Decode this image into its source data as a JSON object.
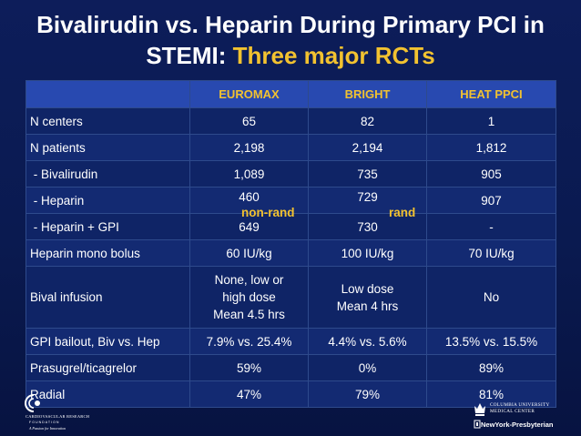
{
  "slide": {
    "title_line1": "Bivalirudin vs. Heparin During Primary PCI in",
    "title_line2_prefix": "STEMI: ",
    "title_line2_highlight": "Three major RCTs"
  },
  "table": {
    "headers": [
      "",
      "EUROMAX",
      "BRIGHT",
      "HEAT PPCI"
    ],
    "rows": [
      {
        "label": "N centers",
        "values": [
          "65",
          "82",
          "1"
        ]
      },
      {
        "label": "N patients",
        "values": [
          "2,198",
          "2,194",
          "1,812"
        ]
      },
      {
        "label": " - Bivalirudin",
        "values": [
          "1,089",
          "735",
          "905"
        ]
      },
      {
        "label": " - Heparin",
        "values": [
          "460",
          "729",
          "907"
        ]
      },
      {
        "label": " - Heparin + GPI",
        "values": [
          "649",
          "730",
          "-"
        ]
      },
      {
        "label": "Heparin mono bolus",
        "values": [
          "60 IU/kg",
          "100 IU/kg",
          "70 IU/kg"
        ]
      },
      {
        "label": "Bival infusion",
        "values": [
          [
            "None, low or",
            "high dose",
            "Mean 4.5 hrs"
          ],
          [
            "Low dose",
            "Mean 4 hrs"
          ],
          [
            "No"
          ]
        ]
      },
      {
        "label": "GPI bailout, Biv vs. Hep",
        "values": [
          "7.9% vs. 25.4%",
          "4.4% vs. 5.6%",
          "13.5% vs. 15.5%"
        ]
      },
      {
        "label": "Prasugrel/ticagrelor",
        "values": [
          "59%",
          "0%",
          "89%"
        ]
      },
      {
        "label": "Radial",
        "values": [
          "47%",
          "79%",
          "81%"
        ]
      }
    ],
    "annotations": {
      "euromax": "non-rand",
      "bright": "rand"
    }
  },
  "logos": {
    "left": {
      "line1": "CARDIOVASCULAR RESEARCH",
      "line2": "FOUNDATION",
      "line3": "A Passion for Innovation"
    },
    "right": {
      "line1": "COLUMBIA UNIVERSITY",
      "line2": "MEDICAL CENTER",
      "line3": "NewYork-Presbyterian"
    }
  },
  "colors": {
    "background": "#0b1b52",
    "header_fill": "#2849b0",
    "accent_yellow": "#f2c230",
    "text": "#ffffff"
  }
}
